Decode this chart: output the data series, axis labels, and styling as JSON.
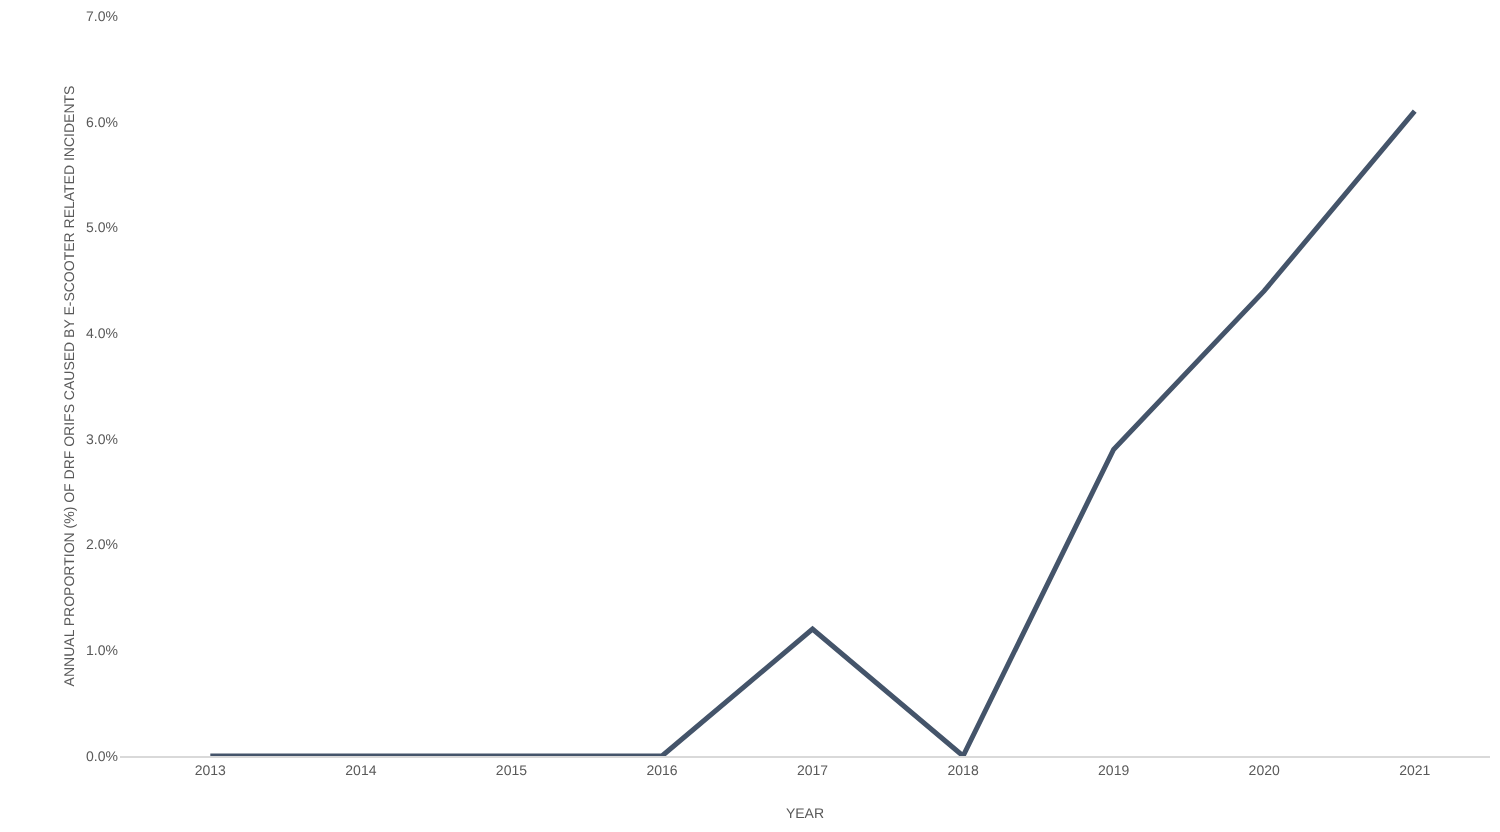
{
  "chart_data": {
    "type": "line",
    "xlabel": "YEAR",
    "ylabel": "ANNUAL PROPORTION (%) OF DRF ORIFS CAUSED BY E-SCOOTER RELATED INCIDENTS",
    "categories": [
      "2013",
      "2014",
      "2015",
      "2016",
      "2017",
      "2018",
      "2019",
      "2020",
      "2021"
    ],
    "series": [
      {
        "color": "#44546a",
        "values": [
          0,
          0,
          0,
          0,
          1.2,
          0,
          2.9,
          4.4,
          6.1
        ]
      }
    ],
    "ylim": [
      0,
      7
    ],
    "yticks": [
      {
        "value": 0,
        "label": "0.0%"
      },
      {
        "value": 1,
        "label": "1.0%"
      },
      {
        "value": 2,
        "label": "2.0%"
      },
      {
        "value": 3,
        "label": "3.0%"
      },
      {
        "value": 4,
        "label": "4.0%"
      },
      {
        "value": 5,
        "label": "5.0%"
      },
      {
        "value": 6,
        "label": "6.0%"
      },
      {
        "value": 7,
        "label": "7.0%"
      }
    ],
    "marker": "none",
    "line_style": "solid"
  }
}
